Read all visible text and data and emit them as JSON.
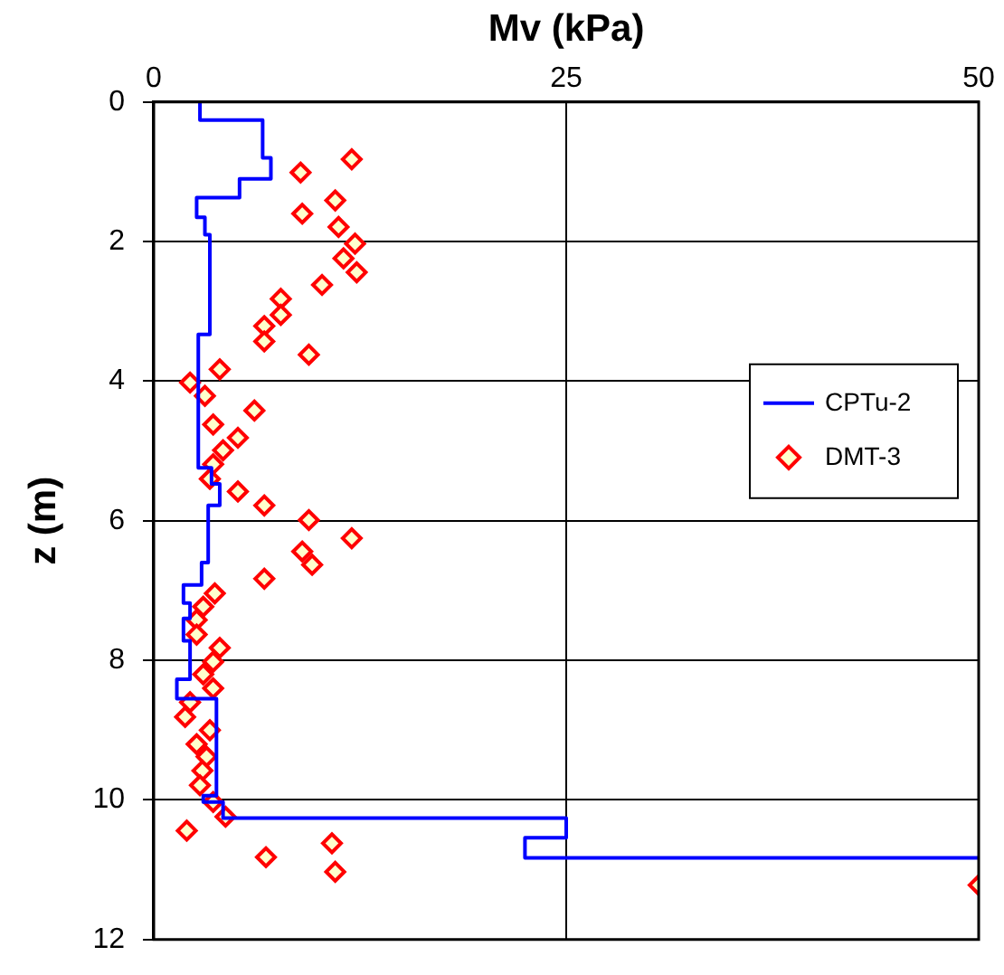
{
  "chart_data": {
    "type": "scatter",
    "xlabel": "Mv (kPa)",
    "ylabel": "z (m)",
    "xlim": [
      0,
      50
    ],
    "xticks": [
      0,
      25,
      50
    ],
    "ylim": [
      12,
      0
    ],
    "yticks": [
      0,
      2,
      4,
      6,
      8,
      10,
      12
    ],
    "grid": true,
    "legend": "right",
    "series": [
      {
        "name": "CPTu-2",
        "type": "line",
        "color": "#0000ff",
        "marker": "none",
        "line_style": "solid",
        "x": [
          2.8,
          2.8,
          6.6,
          6.6,
          7.1,
          7.1,
          5.2,
          5.2,
          2.6,
          2.6,
          3.1,
          3.1,
          3.4,
          3.4,
          2.7,
          2.7,
          3.5,
          3.5,
          4.0,
          4.0,
          3.3,
          3.3,
          2.9,
          2.9,
          1.8,
          1.8,
          2.2,
          2.2,
          1.8,
          1.8,
          2.2,
          2.2,
          1.4,
          1.4,
          3.8,
          3.8,
          3.0,
          3.0,
          4.2,
          4.2,
          25,
          25,
          22.5,
          22.5,
          50
        ],
        "values": [
          0,
          0.26,
          0.26,
          0.8,
          0.8,
          1.1,
          1.1,
          1.37,
          1.37,
          1.65,
          1.65,
          1.9,
          1.9,
          3.33,
          3.33,
          5.24,
          5.24,
          5.47,
          5.47,
          5.78,
          5.78,
          6.6,
          6.6,
          6.92,
          6.92,
          7.18,
          7.18,
          7.4,
          7.4,
          7.72,
          7.72,
          8.27,
          8.27,
          8.55,
          8.55,
          9.94,
          9.94,
          10.03,
          10.03,
          10.26,
          10.26,
          10.54,
          10.54,
          10.83,
          10.83
        ]
      },
      {
        "name": "DMT-3",
        "type": "scatter",
        "color": "#ff0000",
        "marker": "diamond",
        "x": [
          12.0,
          8.9,
          11.0,
          9.0,
          11.2,
          12.2,
          11.5,
          12.3,
          10.2,
          7.7,
          7.7,
          6.7,
          6.7,
          9.4,
          4.0,
          2.2,
          3.1,
          6.1,
          3.6,
          5.1,
          4.2,
          3.6,
          3.4,
          5.1,
          6.7,
          9.4,
          12.0,
          9.0,
          9.6,
          6.7,
          3.7,
          3.0,
          2.6,
          2.6,
          4.0,
          3.6,
          3.0,
          3.6,
          2.2,
          1.9,
          3.4,
          2.6,
          3.2,
          2.95,
          2.8,
          3.6,
          4.35,
          2.0,
          10.8,
          6.8,
          11.0,
          50
        ],
        "values": [
          0.82,
          1.01,
          1.41,
          1.6,
          1.79,
          2.03,
          2.24,
          2.44,
          2.62,
          2.82,
          3.05,
          3.21,
          3.43,
          3.62,
          3.83,
          4.02,
          4.21,
          4.42,
          4.62,
          4.81,
          4.99,
          5.19,
          5.4,
          5.58,
          5.78,
          5.99,
          6.25,
          6.44,
          6.63,
          6.83,
          7.04,
          7.23,
          7.42,
          7.63,
          7.82,
          8.02,
          8.2,
          8.4,
          8.6,
          8.81,
          9.0,
          9.2,
          9.38,
          9.58,
          9.79,
          10.03,
          10.24,
          10.44,
          10.62,
          10.82,
          11.03,
          11.22
        ]
      }
    ]
  }
}
